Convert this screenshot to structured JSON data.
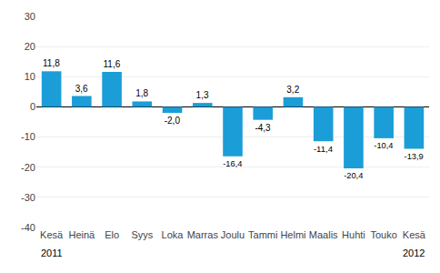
{
  "chart_data": {
    "type": "bar",
    "categories": [
      "Kesä",
      "Heinä",
      "Elo",
      "Syys",
      "Loka",
      "Marras",
      "Joulu",
      "Tammi",
      "Helmi",
      "Maalis",
      "Huhti",
      "Touko",
      "Kesä"
    ],
    "values": [
      11.8,
      3.6,
      11.6,
      1.8,
      -2.0,
      1.3,
      -16.4,
      -4.3,
      3.2,
      -11.4,
      -20.4,
      -10.4,
      -13.9
    ],
    "value_labels": [
      "11,8",
      "3,6",
      "11,6",
      "1,8",
      "-2,0",
      "1,3",
      "-16,4",
      "-4,3",
      "3,2",
      "-11,4",
      "-20,4",
      "-10,4",
      "-13,9"
    ],
    "data_labels": true,
    "color": "#1B9DD8",
    "ylim": [
      -40,
      30
    ],
    "yticks": [
      -40,
      -30,
      -20,
      -10,
      0,
      10,
      20,
      30
    ],
    "grid": true,
    "annotations": [
      {
        "text": "2011",
        "x": 0
      },
      {
        "text": "2012",
        "x": 12
      }
    ]
  }
}
